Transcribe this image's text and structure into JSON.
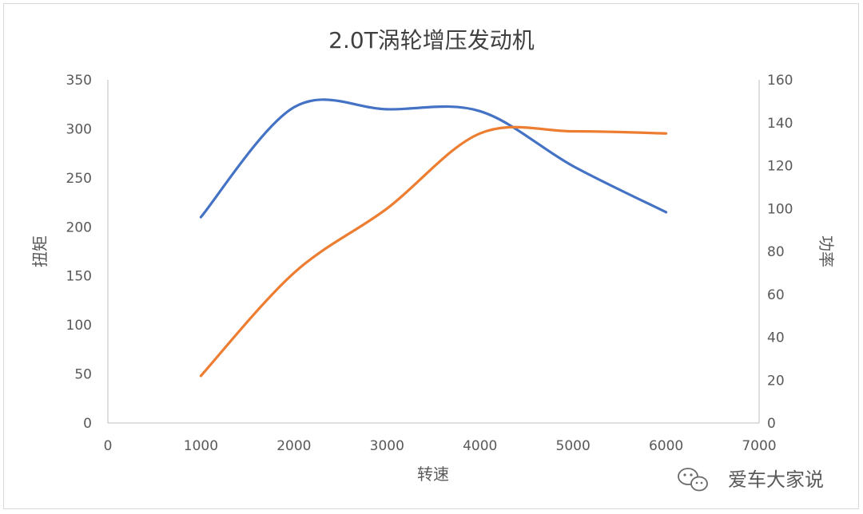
{
  "chart_data": {
    "type": "line",
    "title": "2.0T涡轮增压发动机",
    "xlabel": "转速",
    "ylabel_left": "扭矩",
    "ylabel_right": "功率",
    "xlim": [
      0,
      7000
    ],
    "x_ticks": [
      "0",
      "1000",
      "2000",
      "3000",
      "4000",
      "5000",
      "6000",
      "7000"
    ],
    "ylim_left": [
      0,
      350
    ],
    "y_ticks_left": [
      "0",
      "50",
      "100",
      "150",
      "200",
      "250",
      "300",
      "350"
    ],
    "ylim_right": [
      0,
      160
    ],
    "y_ticks_right": [
      "0",
      "20",
      "40",
      "60",
      "80",
      "100",
      "120",
      "140",
      "160"
    ],
    "grid": false,
    "legend": "none",
    "series": [
      {
        "axis": "left",
        "color": "#4472c4",
        "points": [
          [
            1000,
            210
          ],
          [
            2000,
            322
          ],
          [
            3000,
            320
          ],
          [
            4000,
            318
          ],
          [
            5000,
            262
          ],
          [
            6000,
            215
          ]
        ]
      },
      {
        "axis": "right",
        "color": "#ed7d31",
        "points": [
          [
            1000,
            22
          ],
          [
            2000,
            70
          ],
          [
            3000,
            100
          ],
          [
            4000,
            135
          ],
          [
            5000,
            136
          ],
          [
            6000,
            135
          ]
        ]
      }
    ]
  },
  "watermark": {
    "text": "爱车大家说",
    "icon": "wechat-icon"
  }
}
